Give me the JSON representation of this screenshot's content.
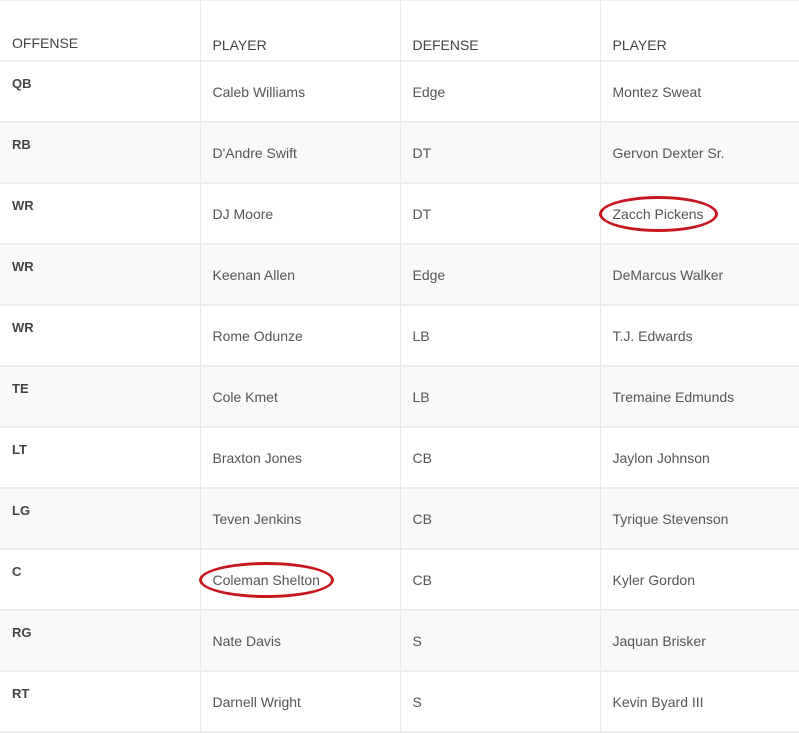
{
  "headers": [
    "OFFENSE",
    "PLAYER",
    "DEFENSE",
    "PLAYER"
  ],
  "rows": [
    {
      "offense": "QB",
      "offense_player": "Caleb Williams",
      "defense": "Edge",
      "defense_player": "Montez Sweat"
    },
    {
      "offense": "RB",
      "offense_player": "D'Andre Swift",
      "defense": "DT",
      "defense_player": "Gervon Dexter Sr."
    },
    {
      "offense": "WR",
      "offense_player": "DJ Moore",
      "defense": "DT",
      "defense_player": "Zacch Pickens",
      "defense_player_circled": true
    },
    {
      "offense": "WR",
      "offense_player": "Keenan Allen",
      "defense": "Edge",
      "defense_player": "DeMarcus Walker"
    },
    {
      "offense": "WR",
      "offense_player": "Rome Odunze",
      "defense": "LB",
      "defense_player": "T.J. Edwards"
    },
    {
      "offense": "TE",
      "offense_player": "Cole Kmet",
      "defense": "LB",
      "defense_player": "Tremaine Edmunds"
    },
    {
      "offense": "LT",
      "offense_player": "Braxton Jones",
      "defense": "CB",
      "defense_player": "Jaylon Johnson"
    },
    {
      "offense": "LG",
      "offense_player": "Teven Jenkins",
      "defense": "CB",
      "defense_player": "Tyrique Stevenson"
    },
    {
      "offense": "C",
      "offense_player": "Coleman Shelton",
      "offense_player_circled": true,
      "defense": "CB",
      "defense_player": "Kyler Gordon"
    },
    {
      "offense": "RG",
      "offense_player": "Nate Davis",
      "defense": "S",
      "defense_player": "Jaquan Brisker"
    },
    {
      "offense": "RT",
      "offense_player": "Darnell Wright",
      "defense": "S",
      "defense_player": "Kevin Byard III"
    }
  ],
  "annotation_color": "#c8161e"
}
